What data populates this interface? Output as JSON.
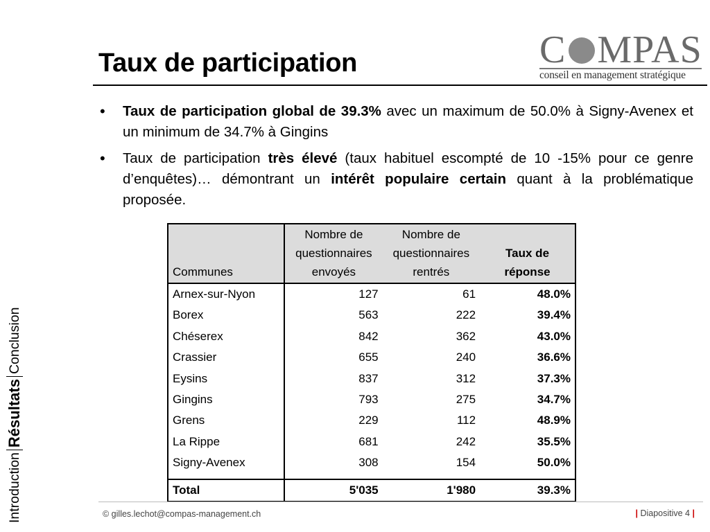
{
  "title": "Taux de participation",
  "logo": {
    "word_start": "C",
    "word_end": "MPAS",
    "tagline": "conseil en management stratégique",
    "colors": {
      "word": "#6a6a6a",
      "dot": "#8a8a8a"
    }
  },
  "bullets": [
    {
      "bold": "Taux de participation global de 39.3%",
      "rest": " avec un maximum de 50.0% à Signy-Avenex et un minimum de 34.7% à Gingins"
    },
    {
      "t1": "Taux de participation ",
      "b1": "très élevé",
      "t2": " (taux habituel escompté de 10 -15% pour ce genre d’enquêtes)… démontrant un ",
      "b2": "intérêt populaire certain",
      "t3": " quant à la problématique proposée."
    }
  ],
  "side_nav": {
    "introduction": "Introduction",
    "resultats": "Résultats",
    "conclusion": "Conclusion"
  },
  "table": {
    "headers": {
      "commune": "Communes",
      "sent_l1": "Nombre de",
      "sent_l2": "questionnaires",
      "sent_l3": "envoyés",
      "recv_l1": "Nombre de",
      "recv_l2": "questionnaires",
      "recv_l3": "rentrés",
      "rate_l1": "Taux de",
      "rate_l2": "réponse"
    },
    "rows": [
      {
        "commune": "Arnex-sur-Nyon",
        "sent": "127",
        "received": "61",
        "rate": "48.0%"
      },
      {
        "commune": "Borex",
        "sent": "563",
        "received": "222",
        "rate": "39.4%"
      },
      {
        "commune": "Chéserex",
        "sent": "842",
        "received": "362",
        "rate": "43.0%"
      },
      {
        "commune": "Crassier",
        "sent": "655",
        "received": "240",
        "rate": "36.6%"
      },
      {
        "commune": "Eysins",
        "sent": "837",
        "received": "312",
        "rate": "37.3%"
      },
      {
        "commune": "Gingins",
        "sent": "793",
        "received": "275",
        "rate": "34.7%"
      },
      {
        "commune": "Grens",
        "sent": "229",
        "received": "112",
        "rate": "48.9%"
      },
      {
        "commune": "La Rippe",
        "sent": "681",
        "received": "242",
        "rate": "35.5%"
      },
      {
        "commune": "Signy-Avenex",
        "sent": "308",
        "received": "154",
        "rate": "50.0%"
      }
    ],
    "total": {
      "label": "Total",
      "sent": "5'035",
      "received": "1'980",
      "rate": "39.3%"
    }
  },
  "footer": {
    "email": "© gilles.lechot@compas-management.ch",
    "bar": "|",
    "page": "Diapositive 4"
  }
}
